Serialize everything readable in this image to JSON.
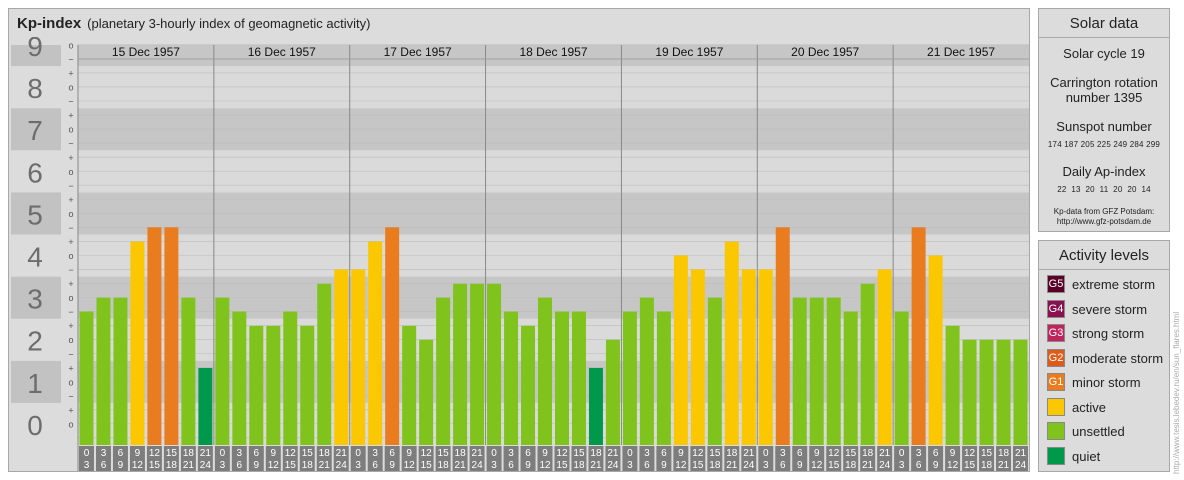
{
  "header": {
    "title": "Kp-index",
    "subtitle": "(planetary 3-hourly index of geomagnetic activity)"
  },
  "colors": {
    "quiet": "#00994c",
    "unsettled": "#7fc31c",
    "active": "#fbc700",
    "minor_storm": "#e87c1e",
    "moderate_storm": "#e05b1a",
    "strong_storm": "#c0245d",
    "severe_storm": "#8a1050",
    "extreme_storm": "#5a0028"
  },
  "chart_data": {
    "type": "bar",
    "title": "Kp-index",
    "ylim": [
      0,
      9
    ],
    "y_ticks": [
      "0",
      "1",
      "2",
      "3",
      "4",
      "5",
      "6",
      "7",
      "8",
      "9"
    ],
    "y_minor_ticks": [
      "+",
      "−",
      "o"
    ],
    "days": [
      "15 Dec 1957",
      "16 Dec 1957",
      "17 Dec 1957",
      "18 Dec 1957",
      "19 Dec 1957",
      "20 Dec 1957",
      "21 Dec 1957"
    ],
    "interval_start": [
      "0",
      "3",
      "6",
      "9",
      "12",
      "15",
      "18",
      "21"
    ],
    "interval_end": [
      "3",
      "6",
      "9",
      "12",
      "15",
      "18",
      "21",
      "24"
    ],
    "values": [
      2.67,
      3.0,
      3.0,
      4.33,
      4.67,
      4.67,
      3.0,
      1.33,
      3.0,
      2.67,
      2.33,
      2.33,
      2.67,
      2.33,
      3.33,
      3.67,
      3.67,
      4.33,
      4.67,
      2.33,
      2.0,
      3.0,
      3.33,
      3.33,
      3.33,
      2.67,
      2.33,
      3.0,
      2.67,
      2.67,
      1.33,
      2.0,
      2.67,
      3.0,
      2.67,
      4.0,
      3.67,
      3.0,
      4.33,
      3.67,
      3.67,
      4.67,
      3.0,
      3.0,
      3.0,
      2.67,
      3.33,
      3.67,
      2.67,
      4.67,
      4.0,
      2.33,
      2.0,
      2.0,
      2.0,
      2.0
    ],
    "grid": true
  },
  "solar": {
    "heading": "Solar data",
    "cycle": "Solar cycle 19",
    "carrington_line1": "Carrington rotation",
    "carrington_line2": "number 1395",
    "sunspot_heading": "Sunspot number",
    "sunspot_values": "174 187 205 225 249 284 299",
    "ap_heading": "Daily Ap-index",
    "ap_values": "22  13  20  11  20  20  14",
    "source_line1": "Kp-data from GFZ Potsdam:",
    "source_line2": "http://www.gfz-potsdam.de"
  },
  "activity": {
    "heading": "Activity levels",
    "levels": [
      {
        "code": "G5",
        "label": "extreme storm",
        "color": "#5a0028"
      },
      {
        "code": "G4",
        "label": "severe storm",
        "color": "#8a1050"
      },
      {
        "code": "G3",
        "label": "strong storm",
        "color": "#c0245d"
      },
      {
        "code": "G2",
        "label": "moderate storm",
        "color": "#e05b1a"
      },
      {
        "code": "G1",
        "label": "minor storm",
        "color": "#e87c1e"
      },
      {
        "code": "",
        "label": "active",
        "color": "#fbc700"
      },
      {
        "code": "",
        "label": "unsettled",
        "color": "#7fc31c"
      },
      {
        "code": "",
        "label": "quiet",
        "color": "#00994c"
      }
    ]
  },
  "watermark": "http://www.tesis.lebedev.ru/en/sun_flares.html"
}
